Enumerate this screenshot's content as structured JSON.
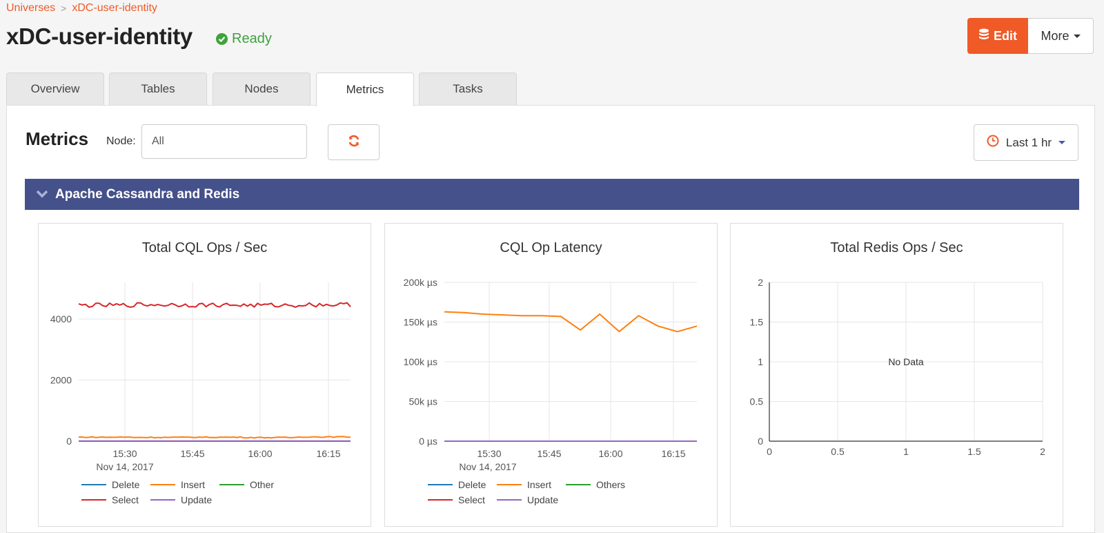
{
  "breadcrumb": {
    "root": "Universes",
    "current": "xDC-user-identity",
    "separator": ">"
  },
  "page": {
    "title": "xDC-user-identity",
    "status": "Ready"
  },
  "actions": {
    "edit_label": "Edit",
    "more_label": "More"
  },
  "tabs": [
    {
      "label": "Overview",
      "active": false
    },
    {
      "label": "Tables",
      "active": false
    },
    {
      "label": "Nodes",
      "active": false
    },
    {
      "label": "Metrics",
      "active": true
    },
    {
      "label": "Tasks",
      "active": false
    }
  ],
  "metrics": {
    "title": "Metrics",
    "node_label": "Node:",
    "node_value": "All",
    "time_range": "Last 1 hr",
    "section": "Apache Cassandra and Redis"
  },
  "colors": {
    "accent": "#ef5a27",
    "status_green": "#3da33a",
    "section_bar": "#45518a",
    "Delete": "#1f77b4",
    "Insert": "#ff7f0e",
    "Other": "#2ca02c",
    "Select": "#d62728",
    "Update": "#9467bd"
  },
  "icons": {
    "status": "check-circle-icon",
    "edit": "database-icon",
    "refresh": "refresh-icon",
    "clock": "clock-icon",
    "collapse": "chevron-down-icon"
  },
  "chart_data": [
    {
      "type": "line",
      "title": "Total CQL Ops / Sec",
      "x_ticks": [
        "15:30",
        "15:45",
        "16:00",
        "16:15"
      ],
      "x_date": "Nov 14, 2017",
      "y_ticks": [
        "0",
        "2000",
        "4000"
      ],
      "ylim": [
        0,
        5200
      ],
      "x": [
        15.25,
        15.5,
        15.75,
        16.0,
        16.25
      ],
      "series": [
        {
          "name": "Delete",
          "values": [
            0,
            0,
            0,
            0,
            0
          ]
        },
        {
          "name": "Insert",
          "values": [
            130,
            125,
            130,
            120,
            140
          ]
        },
        {
          "name": "Other",
          "values": [
            0,
            0,
            0,
            0,
            0
          ]
        },
        {
          "name": "Select",
          "values": [
            4450,
            4470,
            4460,
            4450,
            4470
          ]
        },
        {
          "name": "Update",
          "values": [
            5,
            5,
            5,
            5,
            5
          ]
        }
      ],
      "legend": [
        "Delete",
        "Insert",
        "Other",
        "Select",
        "Update"
      ]
    },
    {
      "type": "line",
      "title": "CQL Op Latency",
      "x_ticks": [
        "15:30",
        "15:45",
        "16:00",
        "16:15"
      ],
      "x_date": "Nov 14, 2017",
      "y_ticks": [
        "0 µs",
        "50k µs",
        "100k µs",
        "150k µs",
        "200k µs"
      ],
      "ylim": [
        0,
        200000
      ],
      "series": [
        {
          "name": "Insert",
          "values": [
            163000,
            162000,
            160000,
            159000,
            158000,
            158000,
            157000,
            140000,
            160000,
            138000,
            158000,
            145000,
            138000,
            145000
          ]
        },
        {
          "name": "Update",
          "values": [
            0,
            0,
            0,
            0,
            0,
            0,
            0,
            0,
            0,
            0,
            0,
            0,
            0,
            0
          ]
        }
      ],
      "legend": [
        "Delete",
        "Insert",
        "Others",
        "Select",
        "Update"
      ]
    },
    {
      "type": "line",
      "title": "Total Redis Ops / Sec",
      "x_ticks": [
        "0",
        "0.5",
        "1",
        "1.5",
        "2"
      ],
      "y_ticks": [
        "0",
        "0.5",
        "1",
        "1.5",
        "2"
      ],
      "xlim": [
        0,
        2
      ],
      "ylim": [
        0,
        2
      ],
      "series": [],
      "empty_text": "No Data"
    }
  ]
}
